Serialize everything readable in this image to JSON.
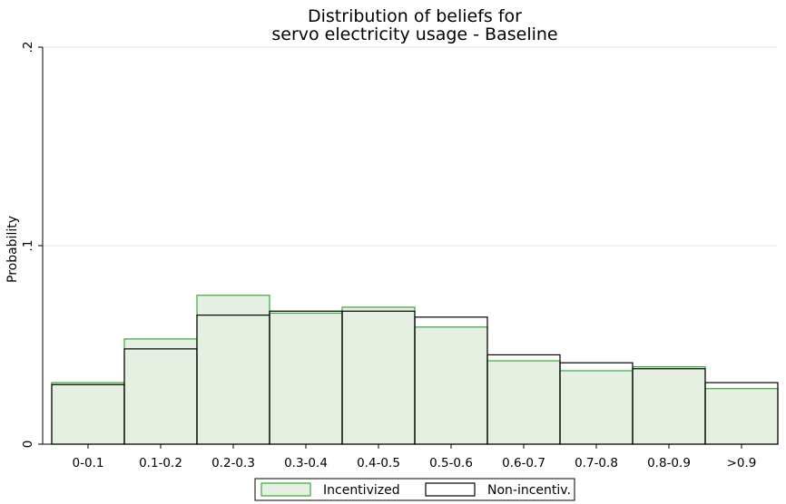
{
  "chart_data": {
    "type": "bar",
    "title": [
      "Distribution of beliefs for",
      "servo electricity usage - Baseline"
    ],
    "xlabel": "",
    "ylabel": "Probability",
    "ylim": [
      0,
      0.2
    ],
    "yticks": [
      {
        "value": 0,
        "label": "0"
      },
      {
        "value": 0.1,
        "label": ".1"
      },
      {
        "value": 0.2,
        "label": ".2"
      }
    ],
    "grid": true,
    "legend_position": "bottom",
    "categories": [
      "0-0.1",
      "0.1-0.2",
      "0.2-0.3",
      "0.3-0.4",
      "0.4-0.5",
      "0.5-0.6",
      "0.6-0.7",
      "0.7-0.8",
      "0.8-0.9",
      ">0.9"
    ],
    "series": [
      {
        "name": "Incentivized",
        "values": [
          0.031,
          0.053,
          0.075,
          0.066,
          0.069,
          0.059,
          0.042,
          0.037,
          0.039,
          0.028
        ],
        "fill": "#e5efe2",
        "stroke": "#3aa83a"
      },
      {
        "name": "Non-incentiv.",
        "values": [
          0.03,
          0.048,
          0.065,
          0.067,
          0.067,
          0.064,
          0.045,
          0.041,
          0.038,
          0.031
        ],
        "fill": "none",
        "stroke": "#000000"
      }
    ]
  }
}
